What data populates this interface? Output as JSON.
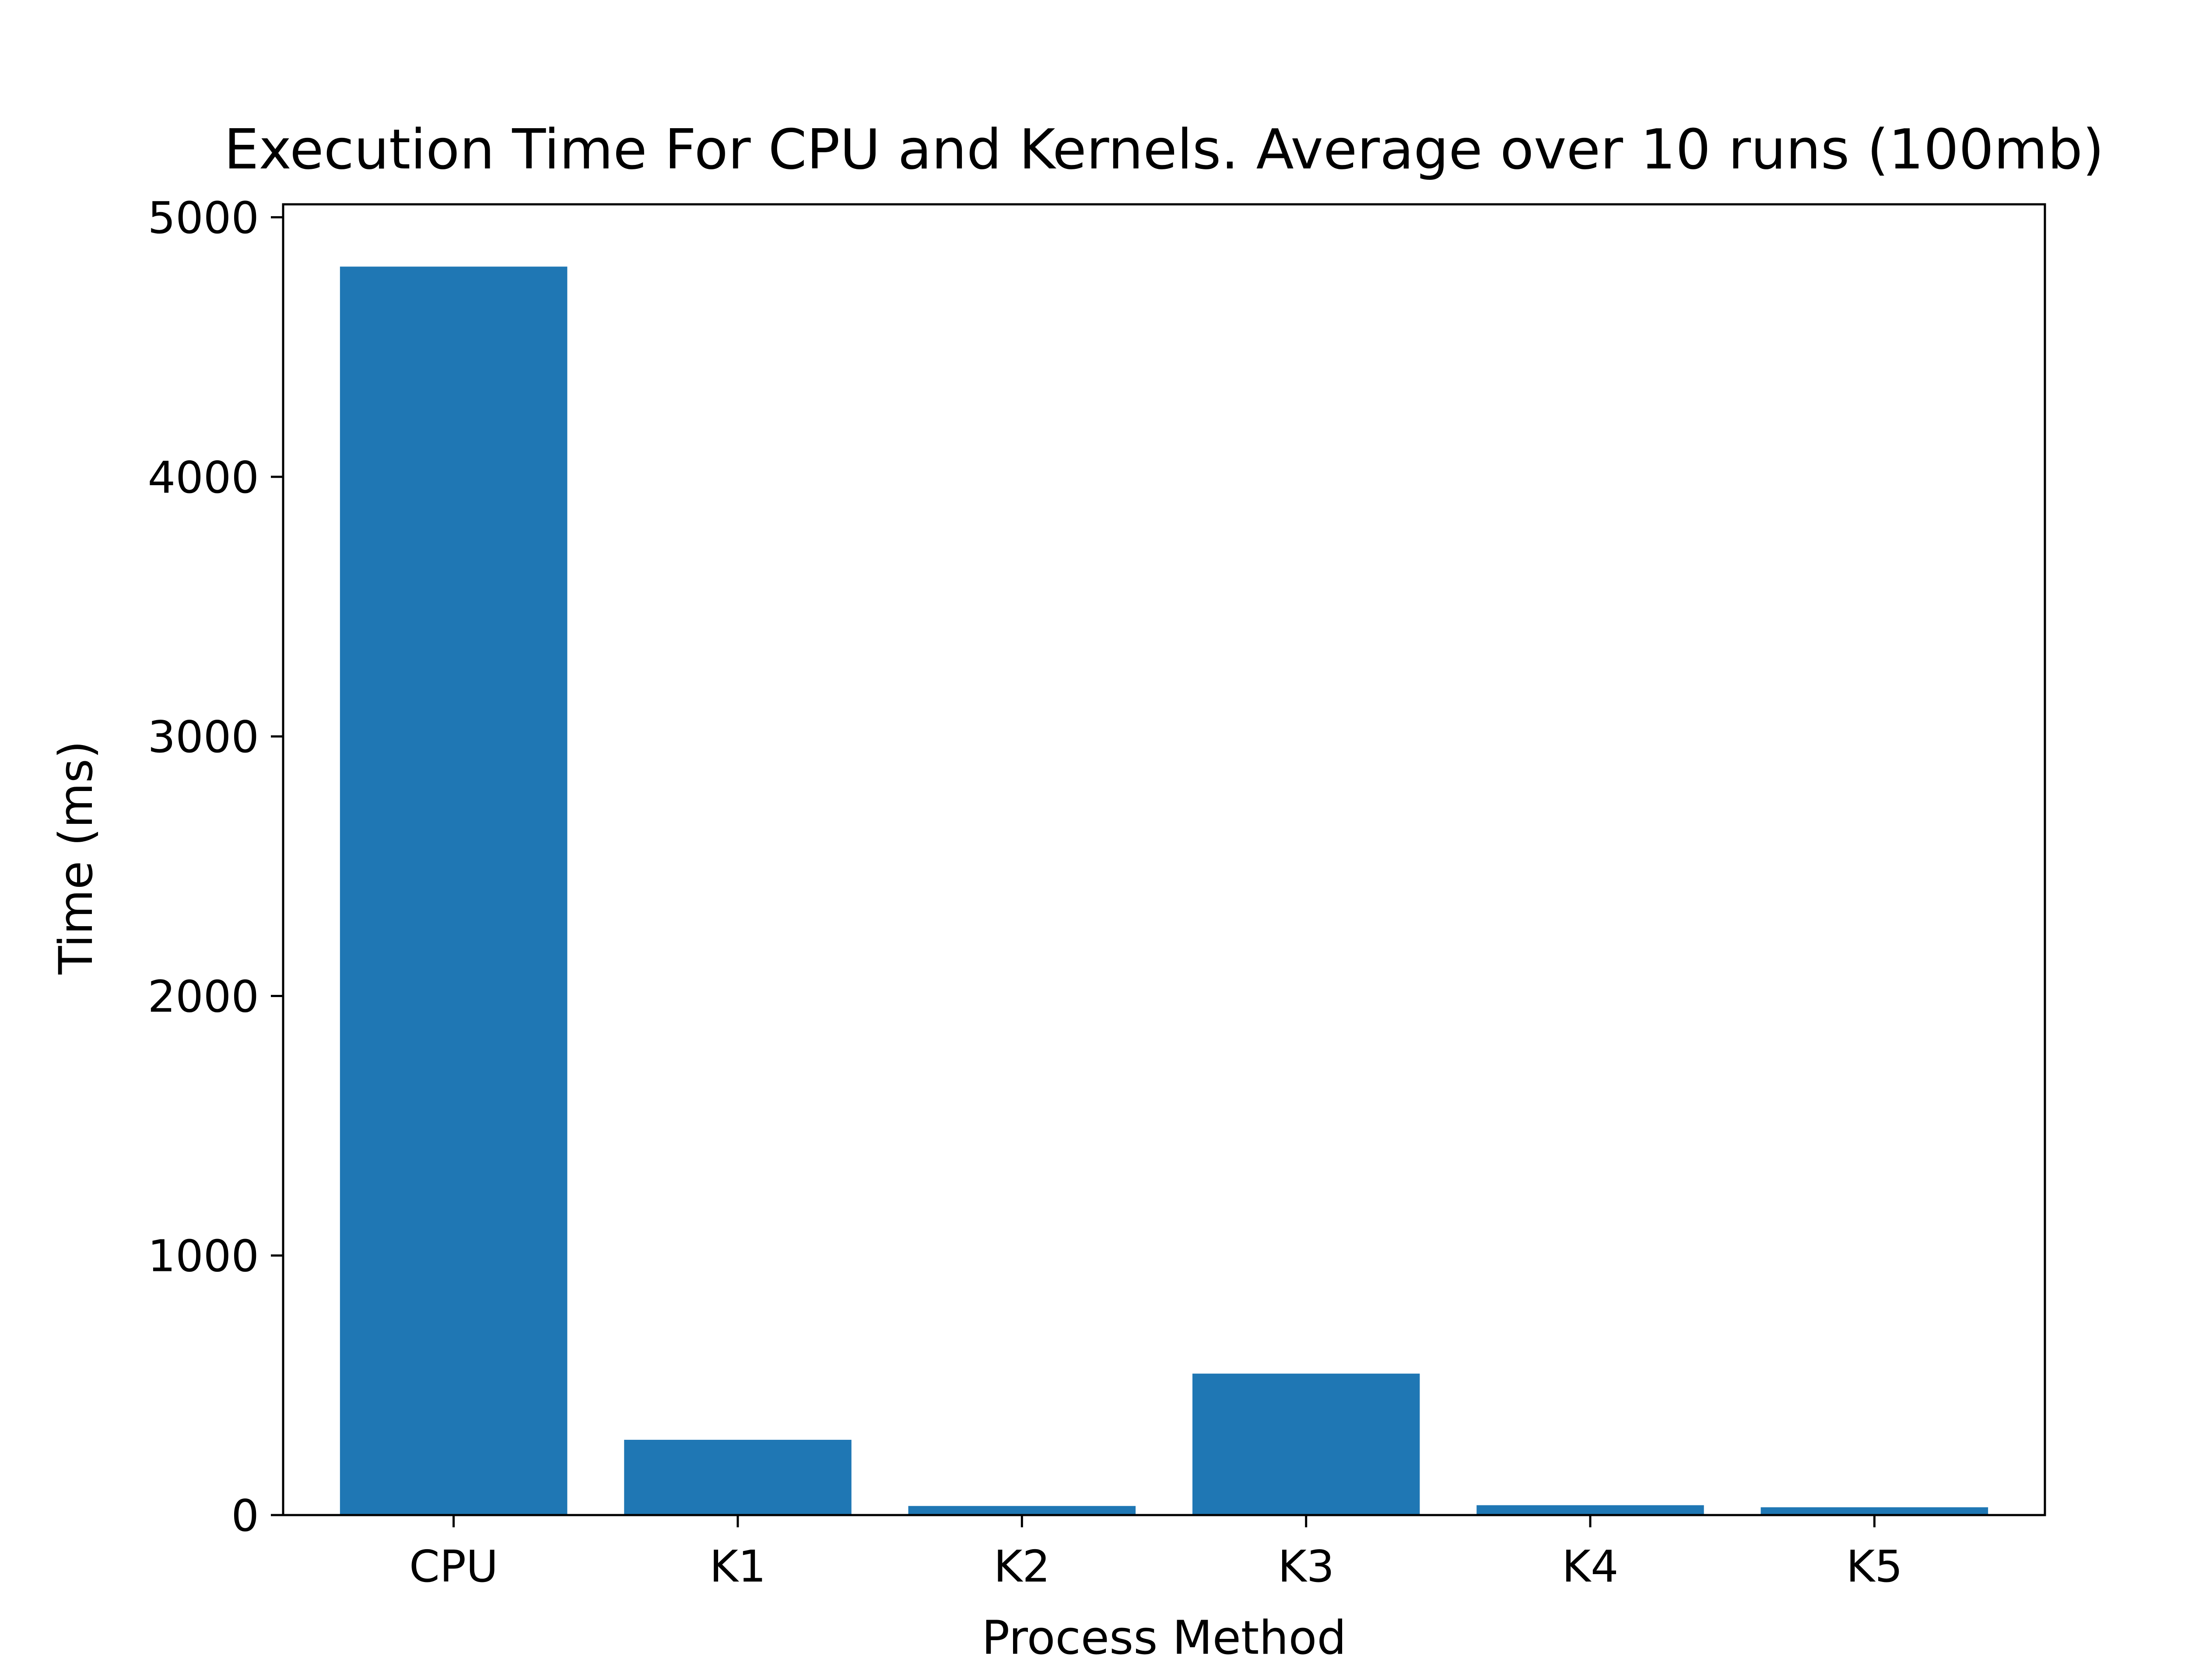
{
  "chart_data": {
    "type": "bar",
    "title": "Execution Time For CPU and Kernels. Average over 10 runs (100mb)",
    "xlabel": "Process Method",
    "ylabel": "Time (ms)",
    "categories": [
      "CPU",
      "K1",
      "K2",
      "K3",
      "K4",
      "K5"
    ],
    "values": [
      4810,
      290,
      35,
      545,
      38,
      30
    ],
    "ylim": [
      0,
      5050
    ],
    "yticks": [
      0,
      1000,
      2000,
      3000,
      4000,
      5000
    ],
    "ytick_labels": [
      "0",
      "1000",
      "2000",
      "3000",
      "4000",
      "5000"
    ],
    "grid": false,
    "bar_color": "#1f77b4"
  }
}
